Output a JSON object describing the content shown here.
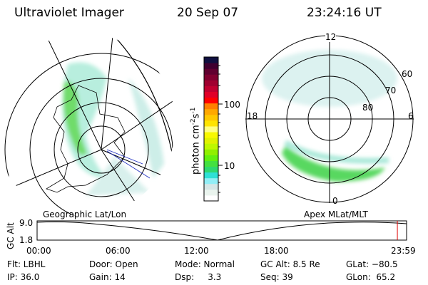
{
  "header": {
    "title": "Ultraviolet Imager",
    "date": "20 Sep 07",
    "time": "23:24:16 UT"
  },
  "colorbar": {
    "label": "photon cm",
    "label_sup1": "-2",
    "label_s": "s",
    "label_sup2": "-1",
    "ticks": [
      "100",
      "10"
    ],
    "colors": [
      "#ffffff",
      "#eaf4ee",
      "#d6e6e6",
      "#92eef6",
      "#2ee0d6",
      "#2ed870",
      "#44e040",
      "#62f010",
      "#90f000",
      "#bef800",
      "#e0f200",
      "#f8f800",
      "#ffff80",
      "#ffe400",
      "#ffc800",
      "#ffa800",
      "#ff8000",
      "#ff0000",
      "#e00028",
      "#c00030",
      "#a00030",
      "#800030",
      "#600030",
      "#400030",
      "#101040"
    ]
  },
  "left_map": {
    "label": "Geographic Lat/Lon"
  },
  "right_map": {
    "label": "Apex MLat/MLT",
    "mlt_labels": [
      "12",
      "18",
      "6",
      "0"
    ],
    "lat_labels": [
      "60",
      "70",
      "80"
    ]
  },
  "altitude_plot": {
    "ylabel": "GC Alt",
    "yticks": [
      "9.0",
      "1.8"
    ],
    "xticks": [
      "00:00",
      "06:00",
      "12:00",
      "18:00",
      "23:59"
    ],
    "current_time_fraction": 0.975
  },
  "status": {
    "flt": "Flt: LBHL",
    "ip": "IP: 36.0",
    "door": "Door: Open",
    "gain": "Gain: 14",
    "mode": "Mode: Normal",
    "dsp": "Dsp:     3.3",
    "gcalt": "GC Alt: 8.5 Re",
    "seq": "Seq: 39",
    "glat": "GLat: −80.5",
    "glon": "GLon:  65.2"
  }
}
